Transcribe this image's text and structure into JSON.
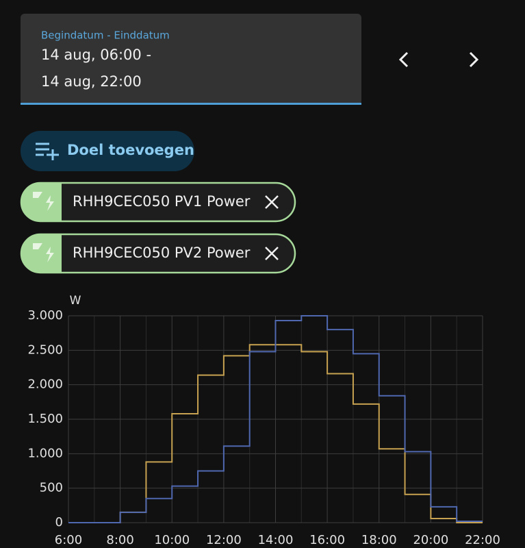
{
  "date_range": {
    "label": "Begindatum - Einddatum",
    "start": "14 aug, 06:00 -",
    "end": "14 aug, 22:00"
  },
  "add_button": "Doel toevoegen",
  "targets": [
    "RHH9CEC050 PV1 Power",
    "RHH9CEC050 PV2 Power"
  ],
  "chart_data": {
    "type": "line",
    "step": "post",
    "y_label": "W",
    "x": [
      6,
      7,
      8,
      9,
      10,
      11,
      12,
      13,
      14,
      15,
      16,
      17,
      18,
      19,
      20,
      21
    ],
    "series": [
      {
        "color": "#c7a250",
        "values": [
          0,
          0,
          150,
          880,
          1580,
          2140,
          2420,
          2580,
          2580,
          2480,
          2160,
          1720,
          1070,
          410,
          60,
          0
        ]
      },
      {
        "color": "#4f68b0",
        "values": [
          0,
          0,
          150,
          350,
          530,
          750,
          1110,
          2480,
          2930,
          3000,
          2800,
          2450,
          1840,
          1030,
          230,
          20
        ]
      }
    ],
    "xlim": [
      6,
      22
    ],
    "xticks": [
      {
        "value": 6,
        "label": "6:00"
      },
      {
        "value": 8,
        "label": "8:00"
      },
      {
        "value": 10,
        "label": "10:00"
      },
      {
        "value": 12,
        "label": "12:00"
      },
      {
        "value": 14,
        "label": "14:00"
      },
      {
        "value": 16,
        "label": "16:00"
      },
      {
        "value": 18,
        "label": "18:00"
      },
      {
        "value": 20,
        "label": "20:00"
      },
      {
        "value": 22,
        "label": "22:00"
      }
    ],
    "ylim": [
      0,
      3000
    ],
    "yticks": [
      0,
      500,
      {
        "value": 1000,
        "label": "1.000"
      },
      {
        "value": 1500,
        "label": "1.500"
      },
      {
        "value": 2000,
        "label": "2.000"
      },
      {
        "value": 2500,
        "label": "2.500"
      },
      {
        "value": 3000,
        "label": "3.000"
      }
    ],
    "grid": true
  }
}
